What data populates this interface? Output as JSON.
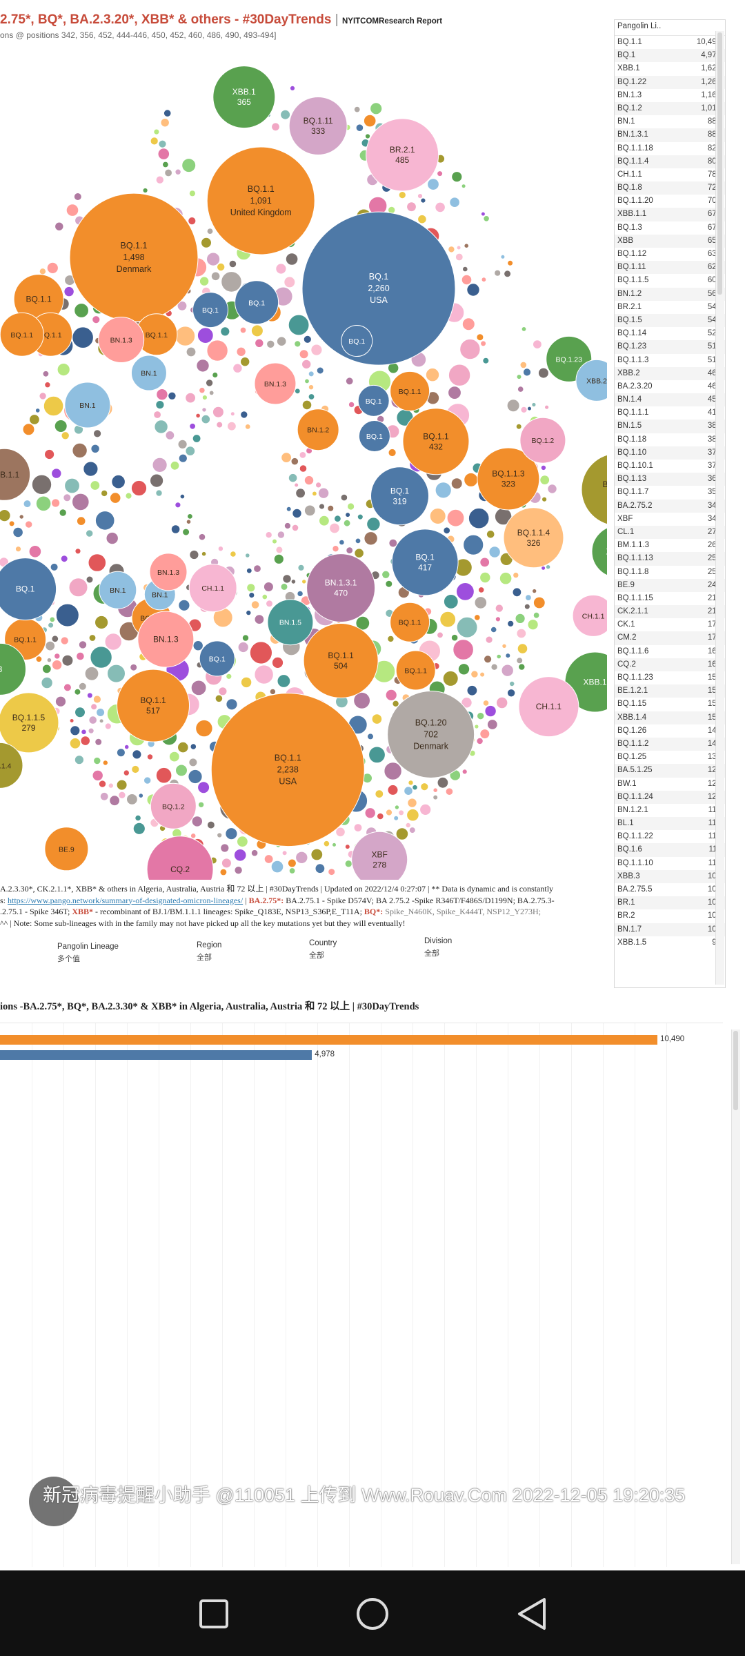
{
  "header": {
    "title": "2.75*, BQ*, BA.2.3.20*, XBB* & others  -  #30DayTrends",
    "separator": " | ",
    "brand": "NYITCOMResearch Report",
    "subtitle": "ons @ positions 342, 356, 452, 444-446, 450, 452, 460, 486, 490, 493-494]"
  },
  "colors": {
    "orange": "#f28e2b",
    "blue": "#4e79a7",
    "green": "#59a14f",
    "pink": "#f7b6d2",
    "purple": "#b07aa1",
    "olive": "#a4992f",
    "grey": "#b0a9a5",
    "title_red": "#c74b3a"
  },
  "bubbles": [
    {
      "label": "BQ.1",
      "value": "2,260",
      "region": "USA",
      "color": "blue",
      "text": "light"
    },
    {
      "label": "BQ.1.1",
      "value": "2,238",
      "region": "USA",
      "color": "orange",
      "text": "dark"
    },
    {
      "label": "BQ.1.1",
      "value": "1,498",
      "region": "Denmark",
      "color": "orange",
      "text": "dark"
    },
    {
      "label": "BQ.1.1",
      "value": "1,091",
      "region": "United Kingdom",
      "color": "orange",
      "text": "dark"
    },
    {
      "label": "BQ.1.20",
      "value": "702",
      "region": "Denmark",
      "color": "grey",
      "text": "dark"
    },
    {
      "label": "BQ.1.1",
      "value": "517",
      "region": "",
      "color": "orange",
      "text": "dark"
    },
    {
      "label": "BQ.1.1",
      "value": "504",
      "region": "",
      "color": "orange",
      "text": "dark"
    },
    {
      "label": "BQ.1.12",
      "value": "488",
      "region": "",
      "color": "olive",
      "text": "dark"
    },
    {
      "label": "BR.2.1",
      "value": "485",
      "region": "",
      "color": "pink",
      "text": "dark"
    },
    {
      "label": "BN.1.3.1",
      "value": "470",
      "region": "",
      "color": "purple",
      "text": "light"
    },
    {
      "label": "BQ.1.1",
      "value": "432",
      "region": "",
      "color": "orange",
      "text": "dark"
    },
    {
      "label": "BQ.1",
      "value": "417",
      "region": "",
      "color": "blue",
      "text": "light"
    },
    {
      "label": "XBB.1",
      "value": "365",
      "region": "",
      "color": "green",
      "text": "light"
    },
    {
      "label": "BQ.1.11",
      "value": "333",
      "region": "",
      "color": "purple2",
      "text": "dark"
    },
    {
      "label": "BQ.1.1.4",
      "value": "326",
      "region": "",
      "color": "peach",
      "text": "dark"
    },
    {
      "label": "BQ.1.1.3",
      "value": "323",
      "region": "",
      "color": "orange",
      "text": "dark"
    },
    {
      "label": "BQ.1",
      "value": "319",
      "region": "",
      "color": "blue",
      "text": "light"
    },
    {
      "label": "BQ.1.1.5",
      "value": "279",
      "region": "",
      "color": "yellow",
      "text": "dark"
    },
    {
      "label": "XBF",
      "value": "278",
      "region": "",
      "color": "purple2",
      "text": "dark"
    },
    {
      "label": "BQ.1.1",
      "value": "",
      "region": "",
      "color": "orange",
      "text": "dark"
    },
    {
      "label": "BQ.1.1",
      "value": "",
      "region": "",
      "color": "orange",
      "text": "dark"
    },
    {
      "label": "BQ.1.1",
      "value": "",
      "region": "",
      "color": "orange",
      "text": "dark"
    },
    {
      "label": "BQ.1.1",
      "value": "",
      "region": "",
      "color": "orange",
      "text": "dark"
    },
    {
      "label": "BQ.1.1",
      "value": "",
      "region": "",
      "color": "orange",
      "text": "dark"
    },
    {
      "label": "BQ.1.1",
      "value": "",
      "region": "",
      "color": "orange",
      "text": "dark"
    },
    {
      "label": "BQ.1.1",
      "value": "",
      "region": "",
      "color": "orange",
      "text": "dark"
    },
    {
      "label": "BQ.1.1",
      "value": "",
      "region": "",
      "color": "orange",
      "text": "dark"
    },
    {
      "label": "BQ.1.1",
      "value": "",
      "region": "",
      "color": "orange",
      "text": "dark"
    },
    {
      "label": "BQ.1",
      "value": "",
      "region": "",
      "color": "blue",
      "text": "light"
    },
    {
      "label": "BQ.1",
      "value": "",
      "region": "",
      "color": "blue",
      "text": "light"
    },
    {
      "label": "BQ.1",
      "value": "",
      "region": "",
      "color": "blue",
      "text": "light"
    },
    {
      "label": "BQ.1",
      "value": "",
      "region": "",
      "color": "blue",
      "text": "light"
    },
    {
      "label": "BQ.1",
      "value": "",
      "region": "",
      "color": "blue",
      "text": "light"
    },
    {
      "label": "BQ.1",
      "value": "",
      "region": "",
      "color": "blue",
      "text": "light"
    },
    {
      "label": "BQ.1",
      "value": "",
      "region": "",
      "color": "blue",
      "text": "light"
    },
    {
      "label": "BN.1",
      "value": "",
      "region": "",
      "color": "lightblue",
      "text": "dark"
    },
    {
      "label": "BN.1",
      "value": "",
      "region": "",
      "color": "lightblue",
      "text": "dark"
    },
    {
      "label": "BN.1",
      "value": "",
      "region": "",
      "color": "lightblue",
      "text": "dark"
    },
    {
      "label": "BN.1",
      "value": "",
      "region": "",
      "color": "lightblue",
      "text": "dark"
    },
    {
      "label": "BN.1.3",
      "value": "",
      "region": "",
      "color": "salmon",
      "text": "dark"
    },
    {
      "label": "BN.1.3",
      "value": "",
      "region": "",
      "color": "salmon",
      "text": "dark"
    },
    {
      "label": "BN.1.3",
      "value": "",
      "region": "",
      "color": "salmon",
      "text": "dark"
    },
    {
      "label": "BN.1.3",
      "value": "",
      "region": "",
      "color": "salmon",
      "text": "dark"
    },
    {
      "label": "BN.1.2",
      "value": "",
      "region": "",
      "color": "orange",
      "text": "dark"
    },
    {
      "label": "BN.1.5",
      "value": "",
      "region": "",
      "color": "teal",
      "text": "light"
    },
    {
      "label": "BQ.1.2",
      "value": "",
      "region": "",
      "color": "pink2",
      "text": "dark"
    },
    {
      "label": "BQ.1.2",
      "value": "",
      "region": "",
      "color": "pink2",
      "text": "dark"
    },
    {
      "label": "BQ.1.23",
      "value": "",
      "region": "",
      "color": "green",
      "text": "light"
    },
    {
      "label": "XBB.2",
      "value": "",
      "region": "",
      "color": "lightblue",
      "text": "dark"
    },
    {
      "label": "XBB.1",
      "value": "",
      "region": "",
      "color": "green",
      "text": "light"
    },
    {
      "label": "XBB.1",
      "value": "",
      "region": "",
      "color": "green",
      "text": "light"
    },
    {
      "label": "XBB.1",
      "value": "",
      "region": "",
      "color": "green",
      "text": "light"
    },
    {
      "label": "CH.1.1",
      "value": "",
      "region": "",
      "color": "pink",
      "text": "dark"
    },
    {
      "label": "CH.1.1",
      "value": "",
      "region": "",
      "color": "pink",
      "text": "dark"
    },
    {
      "label": "CH.1.1",
      "value": "",
      "region": "",
      "color": "pink",
      "text": "dark"
    },
    {
      "label": "BE.9",
      "value": "",
      "region": "",
      "color": "orange",
      "text": "dark"
    },
    {
      "label": "CQ.2",
      "value": "",
      "region": "",
      "color": "rose",
      "text": "dark"
    },
    {
      "label": "XBB.1.1",
      "value": "",
      "region": "",
      "color": "brown",
      "text": "dark"
    },
    {
      "label": "BQ.1.4",
      "value": "",
      "region": "",
      "color": "olive",
      "text": "dark"
    },
    {
      "label": "3",
      "value": "",
      "region": "",
      "color": "green",
      "text": "light"
    },
    {
      "label": "1",
      "value": "",
      "region": "",
      "color": "orange",
      "text": "dark"
    }
  ],
  "notes": {
    "line1": "A.2.3.30*, CK.2.1.1*,  XBB* & others in Algeria, Australia, Austria 和 72 以上 | #30DayTrends | Updated on 2022/12/4 0:27:07 | ** Data is dynamic and is constantly",
    "line2_pre": "s: ",
    "line2_link": "https://www.pango.network/summary-of-designated-omicron-lineages/",
    "line2_sep": " | ",
    "line2_red": "BA.2.75*:",
    "line2_rest": " BA.2.75.1 - Spike D574V; BA 2.75.2 -Spike R346T/F486S/D1199N; BA.2.75.3-",
    "line3_pre": ".2.75.1 - Spike 346T; ",
    "line3_red": "XBB*",
    "line3_mid": " - recombinant of BJ.1/BM.1.1.1 lineages: Spike_Q183E, NSP13_S36P,E_T11A; ",
    "line3_red2": "BQ*:",
    "line3_grey": " Spike_N460K, Spike_K444T, NSP12_Y273H;",
    "line4": "^^ | Note: Some sub-lineages with in the family may not have picked up all the key mutations yet but they will eventually!"
  },
  "filters": [
    {
      "label": "Pangolin Lineage",
      "value": "多个值"
    },
    {
      "label": "Region",
      "value": "全部"
    },
    {
      "label": "Country",
      "value": "全部"
    },
    {
      "label": "Division",
      "value": "全部"
    }
  ],
  "table": {
    "header": "Pangolin Li..",
    "rows": [
      {
        "name": "BQ.1.1",
        "count": "10,490"
      },
      {
        "name": "BQ.1",
        "count": "4,978"
      },
      {
        "name": "XBB.1",
        "count": "1,620"
      },
      {
        "name": "BQ.1.22",
        "count": "1,268"
      },
      {
        "name": "BN.1.3",
        "count": "1,169"
      },
      {
        "name": "BQ.1.2",
        "count": "1,019"
      },
      {
        "name": "BN.1",
        "count": "889"
      },
      {
        "name": "BN.1.3.1",
        "count": "881"
      },
      {
        "name": "BQ.1.1.18",
        "count": "825"
      },
      {
        "name": "BQ.1.1.4",
        "count": "803"
      },
      {
        "name": "CH.1.1",
        "count": "786"
      },
      {
        "name": "BQ.1.8",
        "count": "720"
      },
      {
        "name": "BQ.1.1.20",
        "count": "705"
      },
      {
        "name": "XBB.1.1",
        "count": "679"
      },
      {
        "name": "BQ.1.3",
        "count": "674"
      },
      {
        "name": "XBB",
        "count": "654"
      },
      {
        "name": "BQ.1.12",
        "count": "630"
      },
      {
        "name": "BQ.1.11",
        "count": "627"
      },
      {
        "name": "BQ.1.1.5",
        "count": "609"
      },
      {
        "name": "BN.1.2",
        "count": "563"
      },
      {
        "name": "BR.2.1",
        "count": "544"
      },
      {
        "name": "BQ.1.5",
        "count": "543"
      },
      {
        "name": "BQ.1.14",
        "count": "521"
      },
      {
        "name": "BQ.1.23",
        "count": "519"
      },
      {
        "name": "BQ.1.1.3",
        "count": "513"
      },
      {
        "name": "XBB.2",
        "count": "466"
      },
      {
        "name": "BA.2.3.20",
        "count": "464"
      },
      {
        "name": "BN.1.4",
        "count": "458"
      },
      {
        "name": "BQ.1.1.1",
        "count": "415"
      },
      {
        "name": "BN.1.5",
        "count": "388"
      },
      {
        "name": "BQ.1.18",
        "count": "382"
      },
      {
        "name": "BQ.1.10",
        "count": "377"
      },
      {
        "name": "BQ.1.10.1",
        "count": "373"
      },
      {
        "name": "BQ.1.13",
        "count": "363"
      },
      {
        "name": "BQ.1.1.7",
        "count": "354"
      },
      {
        "name": "BA.2.75.2",
        "count": "343"
      },
      {
        "name": "XBF",
        "count": "343"
      },
      {
        "name": "CL.1",
        "count": "275"
      },
      {
        "name": "BM.1.1.3",
        "count": "262"
      },
      {
        "name": "BQ.1.1.13",
        "count": "257"
      },
      {
        "name": "BQ.1.1.8",
        "count": "252"
      },
      {
        "name": "BE.9",
        "count": "243"
      },
      {
        "name": "BQ.1.1.15",
        "count": "217"
      },
      {
        "name": "CK.2.1.1",
        "count": "210"
      },
      {
        "name": "CK.1",
        "count": "171"
      },
      {
        "name": "CM.2",
        "count": "170"
      },
      {
        "name": "BQ.1.1.6",
        "count": "168"
      },
      {
        "name": "CQ.2",
        "count": "163"
      },
      {
        "name": "BQ.1.1.23",
        "count": "158"
      },
      {
        "name": "BE.1.2.1",
        "count": "157"
      },
      {
        "name": "BQ.1.15",
        "count": "151"
      },
      {
        "name": "XBB.1.4",
        "count": "151"
      },
      {
        "name": "BQ.1.26",
        "count": "149"
      },
      {
        "name": "BQ.1.1.2",
        "count": "144"
      },
      {
        "name": "BQ.1.25",
        "count": "133"
      },
      {
        "name": "BA.5.1.25",
        "count": "129"
      },
      {
        "name": "BW.1",
        "count": "125"
      },
      {
        "name": "BQ.1.1.24",
        "count": "124"
      },
      {
        "name": "BN.1.2.1",
        "count": "117"
      },
      {
        "name": "BL.1",
        "count": "116"
      },
      {
        "name": "BQ.1.1.22",
        "count": "114"
      },
      {
        "name": "BQ.1.6",
        "count": "111"
      },
      {
        "name": "BQ.1.1.10",
        "count": "110"
      },
      {
        "name": "XBB.3",
        "count": "109"
      },
      {
        "name": "BA.2.75.5",
        "count": "108"
      },
      {
        "name": "BR.1",
        "count": "107"
      },
      {
        "name": "BR.2",
        "count": "102"
      },
      {
        "name": "BN.1.7",
        "count": "100"
      },
      {
        "name": "XBB.1.5",
        "count": "96"
      }
    ]
  },
  "bar_chart": {
    "title": "ions -BA.2.75*, BQ*, BA.2.3.30* & XBB* in Algeria, Australia, Austria 和 72 以上 | #30DayTrends"
  },
  "chart_data": {
    "type": "bar",
    "orientation": "horizontal",
    "title": "ions -BA.2.75*, BQ*, BA.2.3.30* & XBB* in Algeria, Australia, Austria 和 72 以上 | #30DayTrends",
    "categories": [
      "BQ.1.1",
      "BQ.1"
    ],
    "values": [
      10490,
      4978
    ],
    "value_labels": [
      "10,490",
      "4,978"
    ],
    "colors": [
      "#f28e2b",
      "#4e79a7"
    ],
    "xlim": [
      0,
      10490
    ]
  },
  "watermark": "新冠病毒提醒小助手 @110051 上传到 Www.Rouav.Com 2022-12-05 19:20:35",
  "navbar": {
    "recent_icon": "square-icon",
    "home_icon": "circle-icon",
    "back_icon": "triangle-back-icon"
  }
}
